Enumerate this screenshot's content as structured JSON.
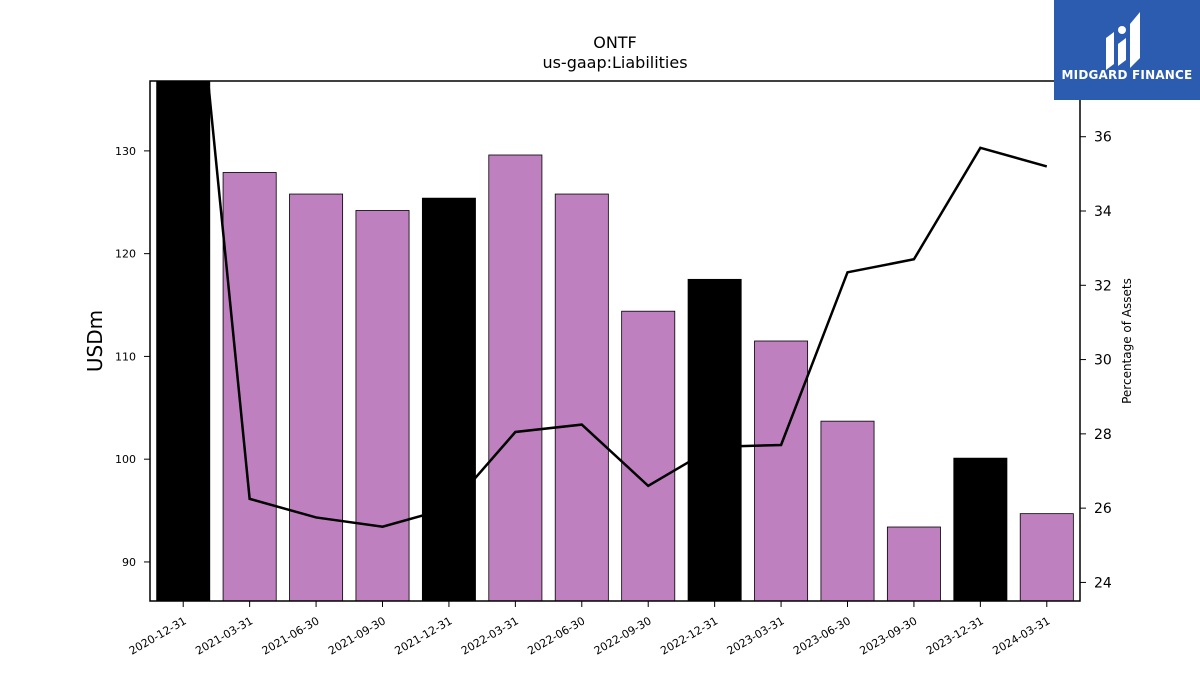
{
  "chart_data": {
    "type": "bar",
    "title": "ONTF",
    "subtitle": "us-gaap:Liabilities",
    "ylabel": "USDm",
    "y2label": "Percentage of Assets",
    "ylim": [
      86.2,
      136.8
    ],
    "y2lim": [
      23.5,
      37.5
    ],
    "yticks": [
      90,
      100,
      110,
      120,
      130
    ],
    "y2ticks": [
      24,
      26,
      28,
      30,
      32,
      34,
      36
    ],
    "categories": [
      "2020-12-31",
      "2021-03-31",
      "2021-06-30",
      "2021-09-30",
      "2021-12-31",
      "2022-03-31",
      "2022-06-30",
      "2022-09-30",
      "2022-12-31",
      "2023-03-31",
      "2023-06-30",
      "2023-09-30",
      "2023-12-31",
      "2024-03-31"
    ],
    "series": [
      {
        "type": "bar",
        "values": [
          137.0,
          127.9,
          125.8,
          124.2,
          125.4,
          129.6,
          125.8,
          114.4,
          117.5,
          111.5,
          103.7,
          93.4,
          100.1,
          94.7
        ],
        "colors": [
          "#000000",
          "#bf80bf",
          "#bf80bf",
          "#bf80bf",
          "#000000",
          "#bf80bf",
          "#bf80bf",
          "#bf80bf",
          "#000000",
          "#bf80bf",
          "#bf80bf",
          "#bf80bf",
          "#000000",
          "#bf80bf"
        ]
      },
      {
        "type": "line",
        "axis": "right",
        "values": [
          40.5,
          26.25,
          25.75,
          25.5,
          26.0,
          28.05,
          28.25,
          26.6,
          27.65,
          27.7,
          32.35,
          32.7,
          35.7,
          35.2
        ],
        "color": "#000000"
      }
    ],
    "grid": false,
    "legend": "none"
  },
  "logo": {
    "text": "MIDGARD FINANCE",
    "background": "#2b5caf"
  }
}
